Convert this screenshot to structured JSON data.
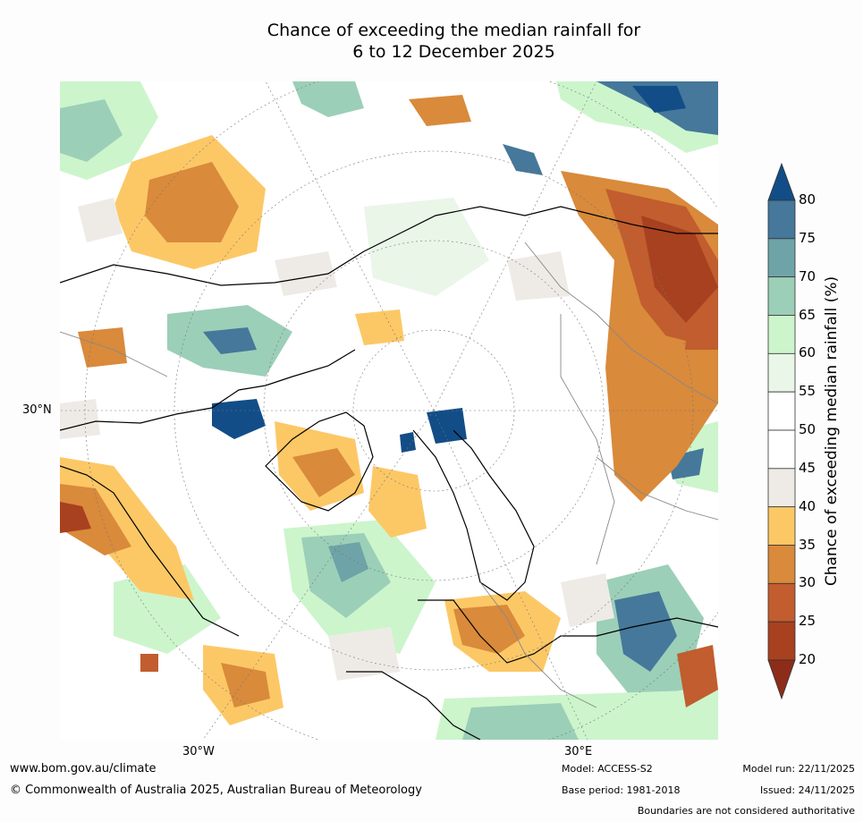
{
  "title_line1": "Chance of exceeding the median rainfall for",
  "title_line2": "6 to 12 December 2025",
  "map": {
    "lat_label": "30°N",
    "lon_labels": [
      "30°W",
      "30°E"
    ]
  },
  "legend": {
    "title": "Chance of exceeding median rainfall (%)",
    "ticks": [
      "20",
      "25",
      "30",
      "35",
      "40",
      "45",
      "50",
      "55",
      "60",
      "65",
      "70",
      "75",
      "80"
    ],
    "colors": [
      "#8e2c1a",
      "#a8411f",
      "#c15d2e",
      "#d98a3b",
      "#fcc866",
      "#eeebe7",
      "#ffffff",
      "#ffffff",
      "#e9f6e8",
      "#ccf5cc",
      "#9ccfb8",
      "#6ea4a8",
      "#45789a",
      "#124d87"
    ]
  },
  "footer": {
    "website": "www.bom.gov.au/climate",
    "copyright": "© Commonwealth of Australia 2025, Australian Bureau of Meteorology",
    "model": "Model: ACCESS-S2",
    "base_period": "Base period: 1981-2018",
    "model_run": "Model run: 22/11/2025",
    "issued": "Issued: 24/11/2025",
    "disclaimer": "Boundaries are not considered authoritative"
  }
}
